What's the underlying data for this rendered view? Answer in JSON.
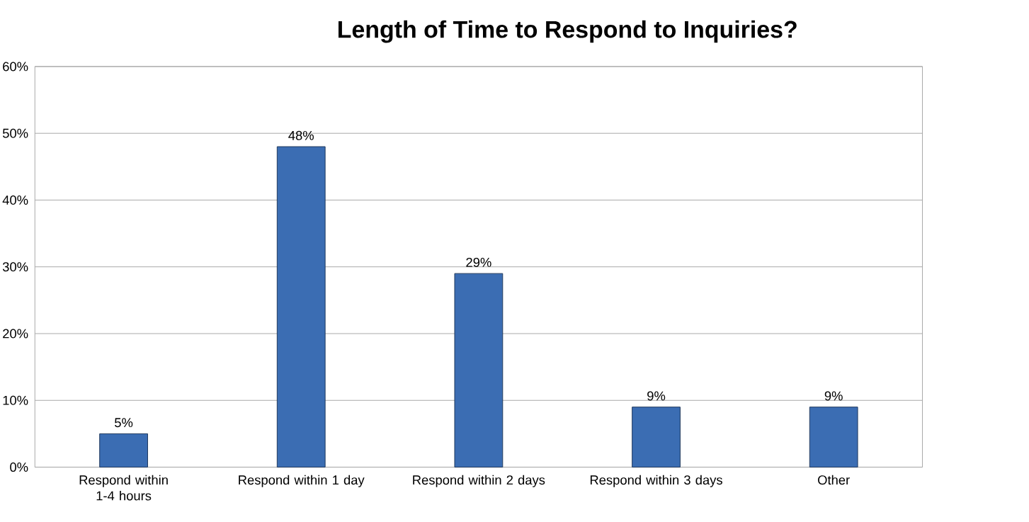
{
  "chart_data": {
    "type": "bar",
    "title": "Length of Time to Respond to Inquiries?",
    "categories": [
      "Respond within 1-4 hours",
      "Respond within 1 day",
      "Respond within 2 days",
      "Respond within 3 days",
      "Other"
    ],
    "values": [
      5,
      48,
      29,
      9,
      9
    ],
    "value_labels": [
      "5%",
      "48%",
      "29%",
      "9%",
      "9%"
    ],
    "color": "#3b6db3",
    "ylim": [
      0,
      60
    ],
    "yticks": [
      {
        "value": 0,
        "label": "0%"
      },
      {
        "value": 10,
        "label": "10%"
      },
      {
        "value": 20,
        "label": "20%"
      },
      {
        "value": 30,
        "label": "30%"
      },
      {
        "value": 40,
        "label": "40%"
      },
      {
        "value": 50,
        "label": "50%"
      },
      {
        "value": 60,
        "label": "60%"
      }
    ],
    "grid": "y"
  }
}
